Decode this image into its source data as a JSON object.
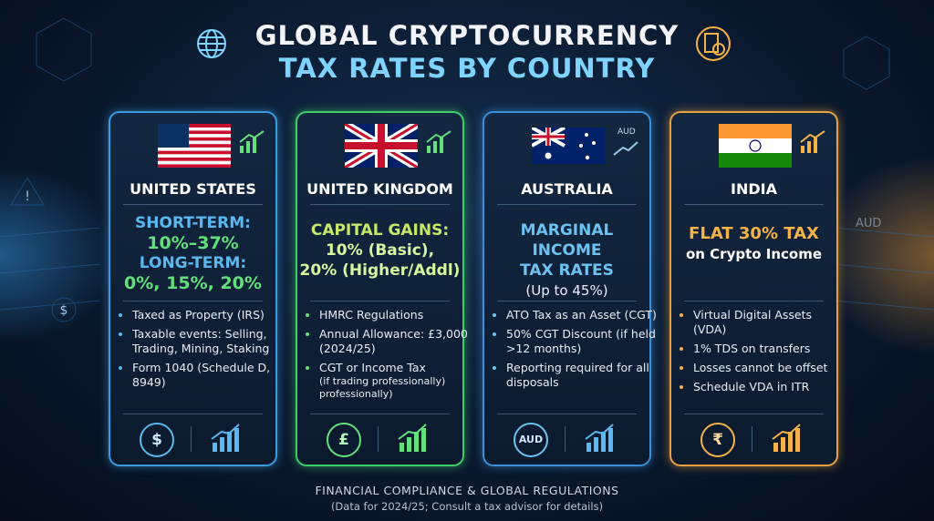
{
  "title": {
    "line1": "GLOBAL CRYPTOCURRENCY",
    "line2": "TAX RATES BY COUNTRY"
  },
  "background_label": "AUD",
  "cards": [
    {
      "name": "UNITED STATES",
      "headline": [
        "SHORT-TERM:",
        "10%–37%",
        "LONG-TERM:",
        "0%, 15%, 20%"
      ],
      "bullets": [
        "Taxed as Property (IRS)",
        "Taxable events: Selling, Trading, Mining, Staking",
        "Form 1040 (Schedule D, 8949)"
      ],
      "icon": "$"
    },
    {
      "name": "UNITED KINGDOM",
      "headline": [
        "CAPITAL GAINS:",
        "10% (Basic),",
        "20% (Higher/Addl)"
      ],
      "bullets": [
        "HMRC Regulations",
        "Annual Allowance: £3,000 (2024/25)",
        "CGT or Income Tax"
      ],
      "bullet_note": "(if trading professionally) professionally)",
      "icon": "£"
    },
    {
      "name": "AUSTRALIA",
      "flag_label": "AUD",
      "headline": [
        "MARGINAL INCOME",
        "TAX RATES",
        "(Up to 45%)"
      ],
      "bullets": [
        "ATO Tax as an Asset (CGT)",
        "50% CGT Discount (if held >12 months)",
        "Reporting required for all disposals"
      ],
      "icon": "AUD"
    },
    {
      "name": "INDIA",
      "headline": [
        "FLAT 30% TAX",
        "on Crypto Income"
      ],
      "bullets": [
        "Virtual Digital Assets (VDA)",
        "1% TDS on transfers",
        "Losses cannot be offset",
        "Schedule VDA in ITR"
      ],
      "icon": "₹"
    }
  ],
  "footer": {
    "line1": "FINANCIAL COMPLIANCE & GLOBAL REGULATIONS",
    "line2": "(Data for 2024/25; Consult a tax advisor for details)"
  }
}
